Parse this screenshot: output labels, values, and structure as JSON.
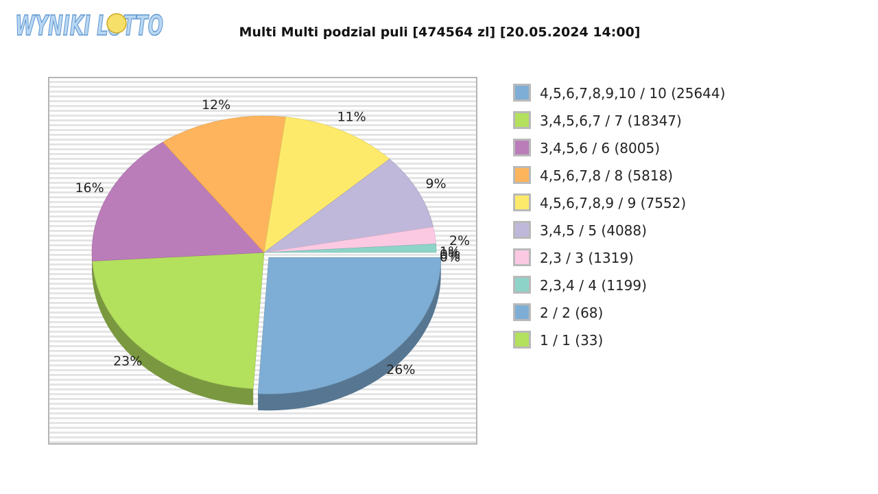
{
  "logo": {
    "text": "WYNIKI LOTTO",
    "star_text": "★"
  },
  "chart_data": {
    "type": "pie",
    "title": "Multi Multi podzial puli [474564 zl] [20.05.2024 14:00]",
    "series": [
      {
        "name": "4,5,6,7,8,9,10 / 10 (25644)",
        "value": 26,
        "label": "26%",
        "color": "#7eaed5"
      },
      {
        "name": "3,4,5,6,7 / 7 (18347)",
        "value": 23,
        "label": "23%",
        "color": "#b3e05d"
      },
      {
        "name": "3,4,5,6 / 6 (8005)",
        "value": 16,
        "label": "16%",
        "color": "#bb7dba"
      },
      {
        "name": "4,5,6,7,8 / 8 (5818)",
        "value": 12,
        "label": "12%",
        "color": "#fdb45c"
      },
      {
        "name": "4,5,6,7,8,9 / 9 (7552)",
        "value": 11,
        "label": "11%",
        "color": "#fdea6b"
      },
      {
        "name": "3,4,5 / 5 (4088)",
        "value": 9,
        "label": "9%",
        "color": "#bfb8da"
      },
      {
        "name": "2,3 / 3 (1319)",
        "value": 2,
        "label": "2%",
        "color": "#fcc9e3"
      },
      {
        "name": "2,3,4 / 4 (1199)",
        "value": 1,
        "label": "1%",
        "color": "#8ed3c8"
      },
      {
        "name": "2 / 2 (68)",
        "value": 0,
        "label": "0%",
        "color": "#7eaed5"
      },
      {
        "name": "1 / 1 (33)",
        "value": 0,
        "label": "0%",
        "color": "#b3e05d"
      }
    ]
  }
}
